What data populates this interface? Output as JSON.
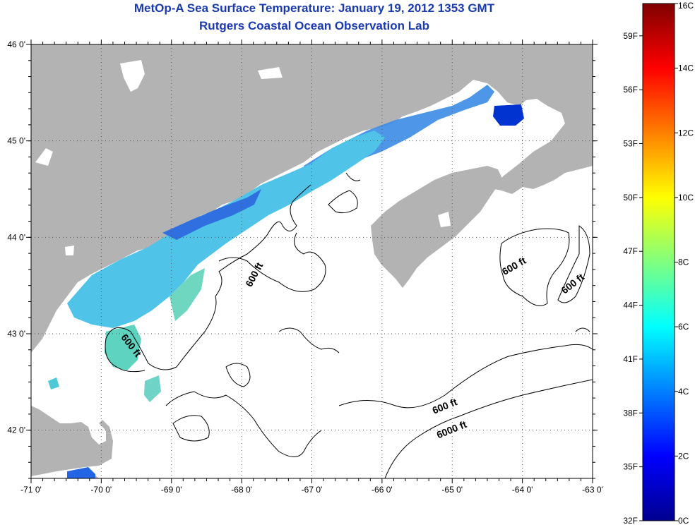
{
  "title": {
    "line1": "MetOp-A Sea Surface Temperature:  January 19, 2012 1353 GMT",
    "line2": "Rutgers Coastal Ocean Observation Lab"
  },
  "map": {
    "lon_range": [
      -71,
      -63
    ],
    "lat_range": [
      41.5,
      46
    ],
    "x_ticks": [
      "-71 0'",
      "-70 0'",
      "-69 0'",
      "-68 0'",
      "-67 0'",
      "-66 0'",
      "-65 0'",
      "-64 0'",
      "-63 0'"
    ],
    "y_ticks": [
      "46 0'",
      "45 0'",
      "44 0'",
      "43 0'",
      "42 0'"
    ],
    "land_color": "#b3b3b3",
    "ocean_color": "#ffffff",
    "contour_labels": [
      "600 ft",
      "600 ft",
      "600 ft",
      "600 ft",
      "6000 ft"
    ]
  },
  "colorbar": {
    "celsius_labels": [
      "16C",
      "14C",
      "12C",
      "10C",
      "8C",
      "6C",
      "4C",
      "2C",
      "0C"
    ],
    "fahrenheit_labels": [
      "59F",
      "56F",
      "53F",
      "50F",
      "47F",
      "44F",
      "41F",
      "38F",
      "35F",
      "32F"
    ],
    "scale": "jet",
    "range_c": [
      0,
      16
    ]
  }
}
